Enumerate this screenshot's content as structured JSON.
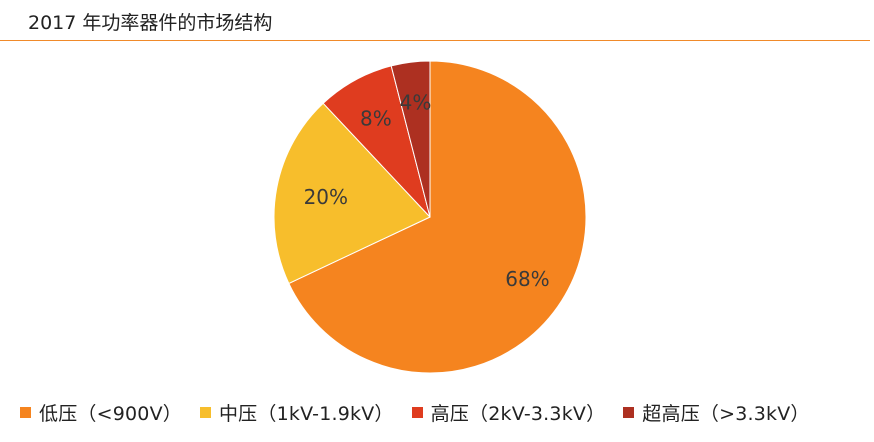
{
  "chart_data": {
    "type": "pie",
    "title": "2017 年功率器件的市场结构",
    "slices": [
      {
        "label": "低压（<900V）",
        "value": 68,
        "display": "68%",
        "color": "#f5841f"
      },
      {
        "label": "中压（1kV-1.9kV）",
        "value": 20,
        "display": "20%",
        "color": "#f7be2c"
      },
      {
        "label": "高压（2kV-3.3kV）",
        "value": 8,
        "display": "8%",
        "color": "#df3c1f"
      },
      {
        "label": "超高压（>3.3kV）",
        "value": 4,
        "display": "4%",
        "color": "#ad3021"
      }
    ],
    "legend_position": "bottom"
  }
}
